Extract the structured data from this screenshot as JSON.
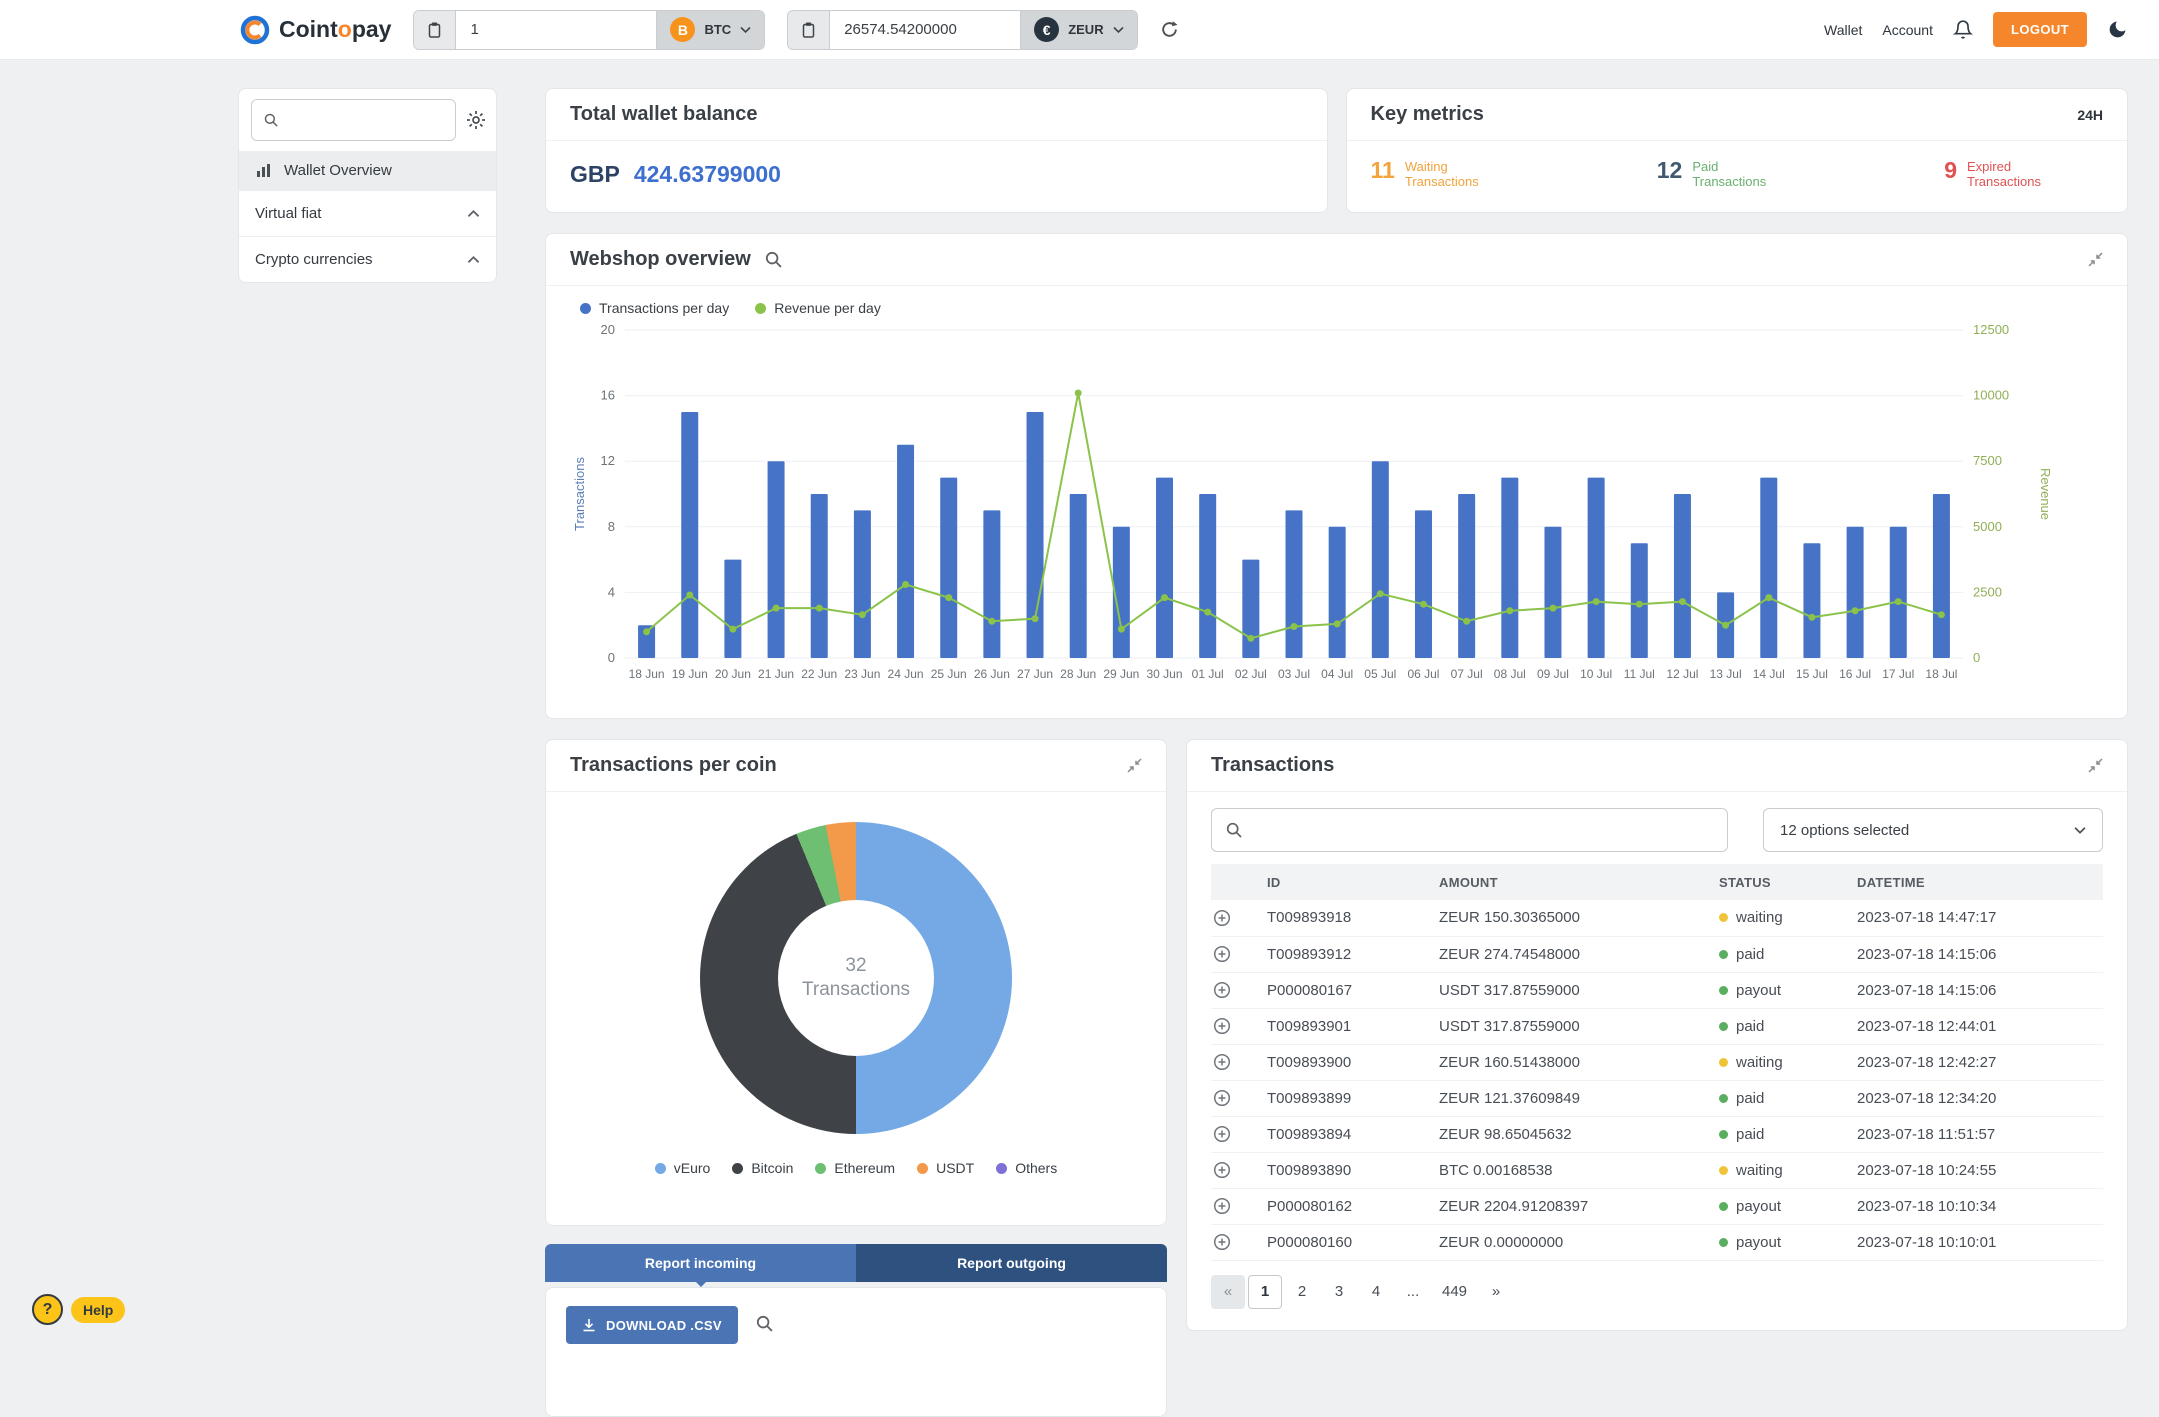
{
  "navbar": {
    "logo_parts": {
      "a": "Coint",
      "b": "o",
      "c": "pay"
    },
    "wallet_input": {
      "value": "1",
      "coin_label": "BTC",
      "coin_symbol": "B"
    },
    "balance_input": {
      "value": "26574.54200000",
      "coin_label": "ZEUR",
      "coin_symbol": "€"
    },
    "wallet_link": "Wallet",
    "account_link": "Account",
    "logout_label": "LOGOUT"
  },
  "sidebar": {
    "active_item": "Wallet Overview",
    "sections": [
      "Virtual fiat",
      "Crypto currencies"
    ]
  },
  "balance_card": {
    "title": "Total wallet balance",
    "currency": "GBP",
    "amount": "424.63799000"
  },
  "key_metrics": {
    "title": "Key metrics",
    "period": "24H",
    "metrics": [
      {
        "value": "11",
        "label": "Waiting Transactions",
        "number_color": "#f2a33c",
        "label_color": "#f2a33c"
      },
      {
        "value": "12",
        "label": "Paid Transactions",
        "number_color": "#41586e",
        "label_color": "#6ab06f"
      },
      {
        "value": "9",
        "label": "Expired Transactions",
        "number_color": "#e05252",
        "label_color": "#e05252"
      }
    ]
  },
  "webshop_card": {
    "title": "Webshop overview"
  },
  "chart_data": {
    "type": "bar+line",
    "title": "Webshop overview",
    "categories": [
      "18 Jun",
      "19 Jun",
      "20 Jun",
      "21 Jun",
      "22 Jun",
      "23 Jun",
      "24 Jun",
      "25 Jun",
      "26 Jun",
      "27 Jun",
      "28 Jun",
      "29 Jun",
      "30 Jun",
      "01 Jul",
      "02 Jul",
      "03 Jul",
      "04 Jul",
      "05 Jul",
      "06 Jul",
      "07 Jul",
      "08 Jul",
      "09 Jul",
      "10 Jul",
      "11 Jul",
      "12 Jul",
      "13 Jul",
      "14 Jul",
      "15 Jul",
      "16 Jul",
      "17 Jul",
      "18 Jul"
    ],
    "series": [
      {
        "name": "Transactions per day",
        "type": "bar",
        "axis": "left",
        "color": "#4673c5",
        "values": [
          2,
          15,
          6,
          12,
          10,
          9,
          13,
          11,
          9,
          15,
          10,
          8,
          11,
          10,
          6,
          9,
          8,
          12,
          9,
          10,
          11,
          8,
          11,
          7,
          10,
          4,
          11,
          7,
          8,
          8,
          10
        ]
      },
      {
        "name": "Revenue per day",
        "type": "line",
        "axis": "right",
        "color": "#8bc34a",
        "values": [
          1000,
          2400,
          1100,
          1900,
          1900,
          1650,
          2800,
          2300,
          1400,
          1500,
          10100,
          1100,
          2300,
          1750,
          750,
          1200,
          1300,
          2450,
          2050,
          1400,
          1800,
          1900,
          2150,
          2050,
          2150,
          1250,
          2300,
          1550,
          1800,
          2150,
          1650
        ]
      }
    ],
    "left_axis": {
      "label": "Transactions",
      "min": 0,
      "max": 20,
      "ticks": [
        0,
        4,
        8,
        12,
        16,
        20
      ],
      "color": "#5d7fb5"
    },
    "right_axis": {
      "label": "Revenue",
      "min": 0,
      "max": 12500,
      "ticks": [
        0,
        2500,
        5000,
        7500,
        10000,
        12500
      ],
      "color": "#8faf55"
    },
    "legend_position": "top-left",
    "grid": true
  },
  "coin_card": {
    "title": "Transactions per coin",
    "chart_data": {
      "type": "pie",
      "labels": [
        "vEuro",
        "Bitcoin",
        "Ethereum",
        "USDT",
        "Others"
      ],
      "values": [
        16,
        14,
        1,
        1,
        0
      ],
      "colors": [
        "#74a9e6",
        "#3f4347",
        "#6fbf73",
        "#f2994a",
        "#7d70d6"
      ],
      "center_value": "32",
      "center_label": "Transactions"
    }
  },
  "reports": {
    "tabs": [
      {
        "label": "Report incoming",
        "active": true
      },
      {
        "label": "Report outgoing",
        "active": false
      }
    ],
    "download_label": "DOWNLOAD .CSV"
  },
  "transactions_card": {
    "title": "Transactions",
    "filter_value": "12 options selected",
    "columns": [
      "ID",
      "AMOUNT",
      "STATUS",
      "DATETIME"
    ],
    "status_colors": {
      "waiting": "#f0c437",
      "paid": "#5aae5f",
      "payout": "#5aae5f"
    },
    "rows": [
      {
        "id": "T009893918",
        "amount": "ZEUR 150.30365000",
        "status": "waiting",
        "datetime": "2023-07-18 14:47:17"
      },
      {
        "id": "T009893912",
        "amount": "ZEUR 274.74548000",
        "status": "paid",
        "datetime": "2023-07-18 14:15:06"
      },
      {
        "id": "P000080167",
        "amount": "USDT 317.87559000",
        "status": "payout",
        "datetime": "2023-07-18 14:15:06"
      },
      {
        "id": "T009893901",
        "amount": "USDT 317.87559000",
        "status": "paid",
        "datetime": "2023-07-18 12:44:01"
      },
      {
        "id": "T009893900",
        "amount": "ZEUR 160.51438000",
        "status": "waiting",
        "datetime": "2023-07-18 12:42:27"
      },
      {
        "id": "T009893899",
        "amount": "ZEUR 121.37609849",
        "status": "paid",
        "datetime": "2023-07-18 12:34:20"
      },
      {
        "id": "T009893894",
        "amount": "ZEUR 98.65045632",
        "status": "paid",
        "datetime": "2023-07-18 11:51:57"
      },
      {
        "id": "T009893890",
        "amount": "BTC 0.00168538",
        "status": "waiting",
        "datetime": "2023-07-18 10:24:55"
      },
      {
        "id": "P000080162",
        "amount": "ZEUR 2204.91208397",
        "status": "payout",
        "datetime": "2023-07-18 10:10:34"
      },
      {
        "id": "P000080160",
        "amount": "ZEUR 0.00000000",
        "status": "payout",
        "datetime": "2023-07-18 10:10:01"
      }
    ],
    "pagination": [
      {
        "label": "«",
        "style": "nav"
      },
      {
        "label": "1",
        "style": "active"
      },
      {
        "label": "2",
        "style": "plain"
      },
      {
        "label": "3",
        "style": "plain"
      },
      {
        "label": "4",
        "style": "plain"
      },
      {
        "label": "...",
        "style": "plain"
      },
      {
        "label": "449",
        "style": "plain"
      },
      {
        "label": "»",
        "style": "plain"
      }
    ]
  },
  "help": {
    "label": "Help"
  }
}
